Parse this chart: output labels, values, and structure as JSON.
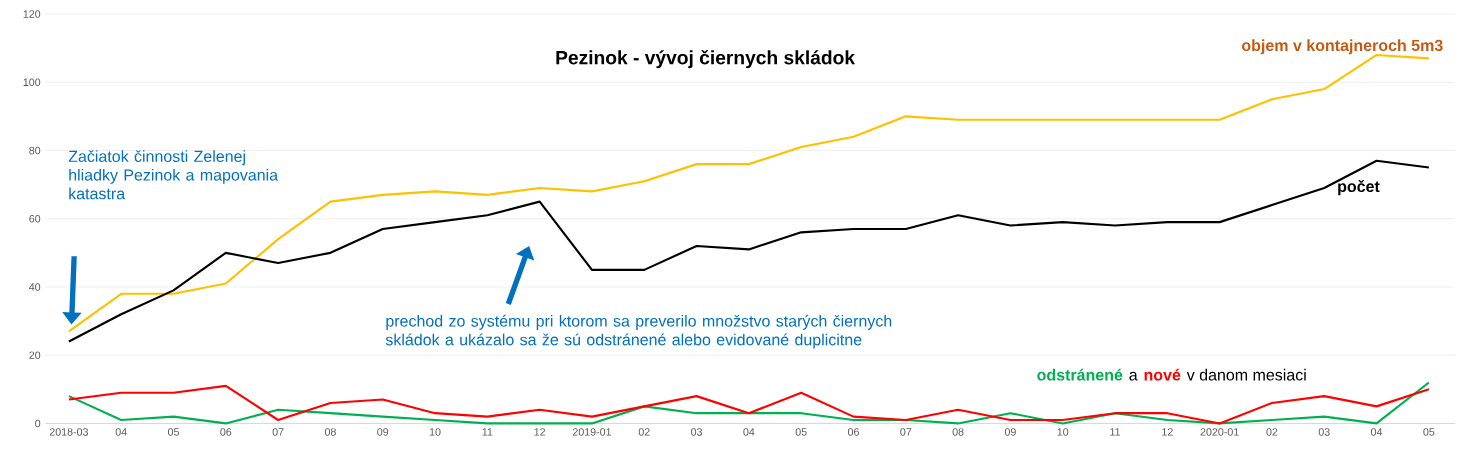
{
  "chart_data": {
    "type": "line",
    "title": "Pezinok - vývoj čiernych skládok",
    "categories": [
      "2018-03",
      "04",
      "05",
      "06",
      "07",
      "08",
      "09",
      "10",
      "11",
      "12",
      "2019-01",
      "02",
      "03",
      "04",
      "05",
      "06",
      "07",
      "08",
      "09",
      "10",
      "11",
      "12",
      "2020-01",
      "02",
      "03",
      "04",
      "05"
    ],
    "series": [
      {
        "name": "objem v kontajneroch 5m3",
        "color": "#ffc000",
        "values": [
          27,
          38,
          38,
          41,
          54,
          65,
          67,
          68,
          67,
          69,
          68,
          71,
          76,
          76,
          81,
          84,
          90,
          89,
          89,
          89,
          89,
          89,
          89,
          95,
          98,
          108,
          107
        ]
      },
      {
        "name": "počet",
        "color": "#000000",
        "values": [
          24,
          32,
          39,
          50,
          47,
          50,
          57,
          59,
          61,
          65,
          45,
          45,
          52,
          51,
          56,
          57,
          57,
          61,
          58,
          59,
          58,
          59,
          59,
          64,
          69,
          77,
          75
        ]
      },
      {
        "name": "odstránené",
        "color": "#00b050",
        "values": [
          8,
          1,
          2,
          0,
          4,
          3,
          2,
          1,
          0,
          0,
          0,
          5,
          3,
          3,
          3,
          1,
          1,
          0,
          3,
          0,
          3,
          1,
          0,
          1,
          2,
          0,
          12
        ]
      },
      {
        "name": "nové",
        "color": "#ff0000",
        "values": [
          7,
          9,
          9,
          11,
          1,
          6,
          7,
          3,
          2,
          4,
          2,
          5,
          8,
          3,
          9,
          2,
          1,
          4,
          1,
          1,
          3,
          3,
          0,
          6,
          8,
          5,
          10
        ]
      }
    ],
    "annotations": [
      "Začiatok činnosti Zelenej hliadky Pezinok a mapovania katastra",
      "prechod zo systému pri ktorom sa preverilo množstvo starých čiernych skládok a ukázalo sa že sú odstránené alebo evidované duplicitne",
      "a",
      "v danom mesiaci"
    ],
    "ylim": [
      0,
      120
    ],
    "yticks": [
      0,
      20,
      40,
      60,
      80,
      100,
      120
    ],
    "grid": "y",
    "marker": "none",
    "line_style": "solid"
  }
}
